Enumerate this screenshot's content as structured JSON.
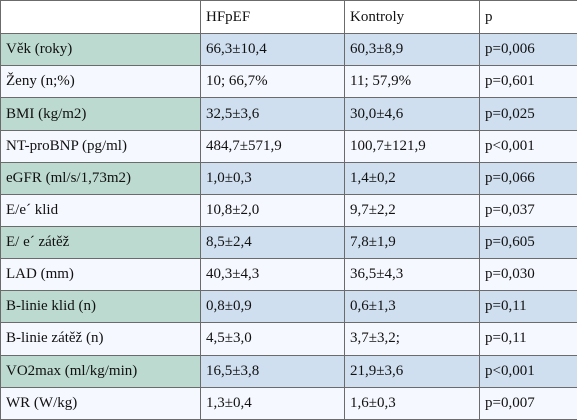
{
  "table": {
    "headers": [
      "",
      "HFpEF",
      "Kontroly",
      "p"
    ],
    "rows": [
      {
        "label": "Věk (roky)",
        "hfpef": "66,3±10,4",
        "kontroly": "60,3±8,9",
        "p": "p=0,006"
      },
      {
        "label": "Ženy (n;%)",
        "hfpef": "10; 66,7%",
        "kontroly": "11; 57,9%",
        "p": "p=0,601"
      },
      {
        "label": "BMI (kg/m2)",
        "hfpef": "32,5±3,6",
        "kontroly": "30,0±4,6",
        "p": "p=0,025"
      },
      {
        "label": "NT-proBNP (pg/ml)",
        "hfpef": "484,7±571,9",
        "kontroly": "100,7±121,9",
        "p": "p<0,001"
      },
      {
        "label": "eGFR (ml/s/1,73m2)",
        "hfpef": "1,0±0,3",
        "kontroly": "1,4±0,2",
        "p": "p=0,066"
      },
      {
        "label": "E/e´ klid",
        "hfpef": "10,8±2,0",
        "kontroly": "9,7±2,2",
        "p": "p=0,037"
      },
      {
        "label": "E/ e´ zátěž",
        "hfpef": "8,5±2,4",
        "kontroly": "7,8±1,9",
        "p": "p=0,605"
      },
      {
        "label": "LAD (mm)",
        "hfpef": "40,3±4,3",
        "kontroly": "36,5±4,3",
        "p": "p=0,030"
      },
      {
        "label": "B-linie klid (n)",
        "hfpef": "0,8±0,9",
        "kontroly": "0,6±1,3",
        "p": "p=0,11"
      },
      {
        "label": "B-linie zátěž (n)",
        "hfpef": "4,5±3,0",
        "kontroly": "3,7±3,2;",
        "p": "p=0,11"
      },
      {
        "label": "VO2max (ml/kg/min)",
        "hfpef": "16,5±3,8",
        "kontroly": "21,9±3,6",
        "p": "p<0,001"
      },
      {
        "label": "WR (W/kg)",
        "hfpef": "1,3±0,4",
        "kontroly": "1,6±0,3",
        "p": "p=0,007"
      }
    ]
  }
}
